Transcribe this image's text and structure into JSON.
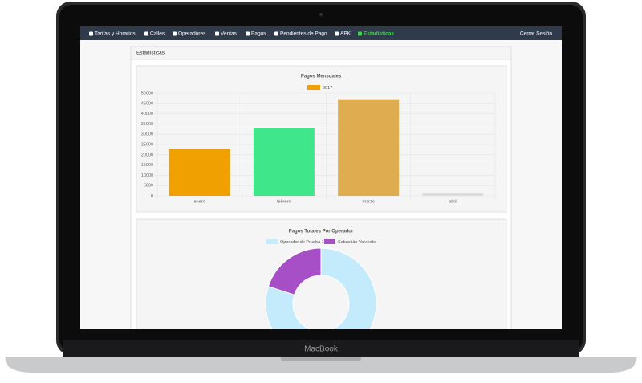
{
  "nav": {
    "items": [
      "Tarifas y Horarios",
      "Calles",
      "Operadores",
      "Ventas",
      "Pagos",
      "Pendientes de Pago",
      "APK",
      "Estadísticas"
    ],
    "active": 7,
    "logout": "Cerrar Sesión"
  },
  "panel_title": "Estadísticas",
  "brand": "MacBook",
  "chart_data": [
    {
      "type": "bar",
      "title": "Pagos Mensuales",
      "categories": [
        "enero",
        "febrero",
        "marzo",
        "abril"
      ],
      "series": [
        {
          "name": "2017",
          "color": "#f0a000",
          "values": [
            23000,
            32800,
            47000,
            1500
          ],
          "colors": [
            "#f0a000",
            "#3fe68a",
            "#dfad50",
            "#dcdcdc"
          ]
        }
      ],
      "ylim": [
        0,
        50000
      ],
      "yticks": [
        0,
        5000,
        10000,
        15000,
        20000,
        25000,
        30000,
        35000,
        40000,
        45000,
        50000
      ],
      "grid": true
    },
    {
      "type": "doughnut",
      "title": "Pagos Totales Por Operador",
      "categories": [
        "Operador de Prueba 1",
        "Sebastián Valverde"
      ],
      "values": [
        80,
        20
      ],
      "colors": [
        "#c3ebfc",
        "#a64fc6"
      ]
    }
  ]
}
